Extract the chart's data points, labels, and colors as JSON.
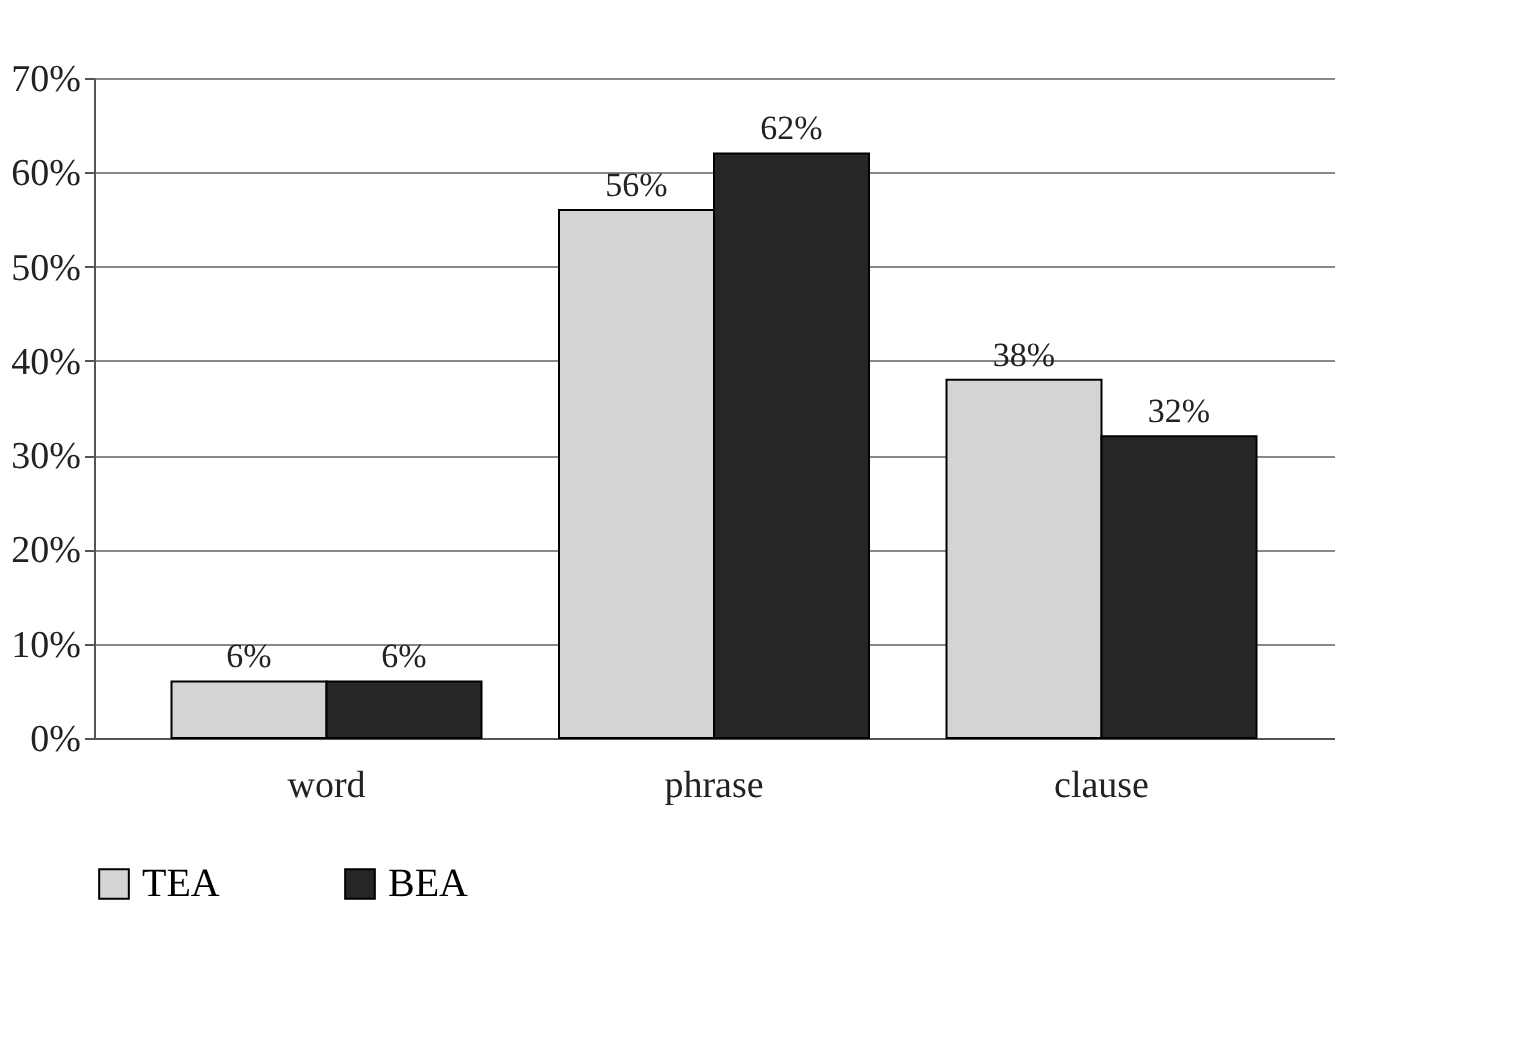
{
  "chart_data": {
    "type": "bar",
    "categories": [
      "word",
      "phrase",
      "clause"
    ],
    "series": [
      {
        "name": "TEA",
        "color": "#d4d4d4",
        "values": [
          6,
          56,
          38
        ],
        "value_labels": [
          "6%",
          "56%",
          "38%"
        ]
      },
      {
        "name": "BEA",
        "color": "#262626",
        "values": [
          6,
          62,
          32
        ],
        "value_labels": [
          "6%",
          "62%",
          "32%"
        ]
      }
    ],
    "ylim": [
      0,
      70
    ],
    "yticks": [
      {
        "value": 0,
        "label": "0%"
      },
      {
        "value": 10,
        "label": "10%"
      },
      {
        "value": 20,
        "label": "20%"
      },
      {
        "value": 30,
        "label": "30%"
      },
      {
        "value": 40,
        "label": "40%"
      },
      {
        "value": 50,
        "label": "50%"
      },
      {
        "value": 60,
        "label": "60%"
      },
      {
        "value": 70,
        "label": "70%"
      }
    ],
    "grid": "y",
    "legend": "bottom"
  }
}
